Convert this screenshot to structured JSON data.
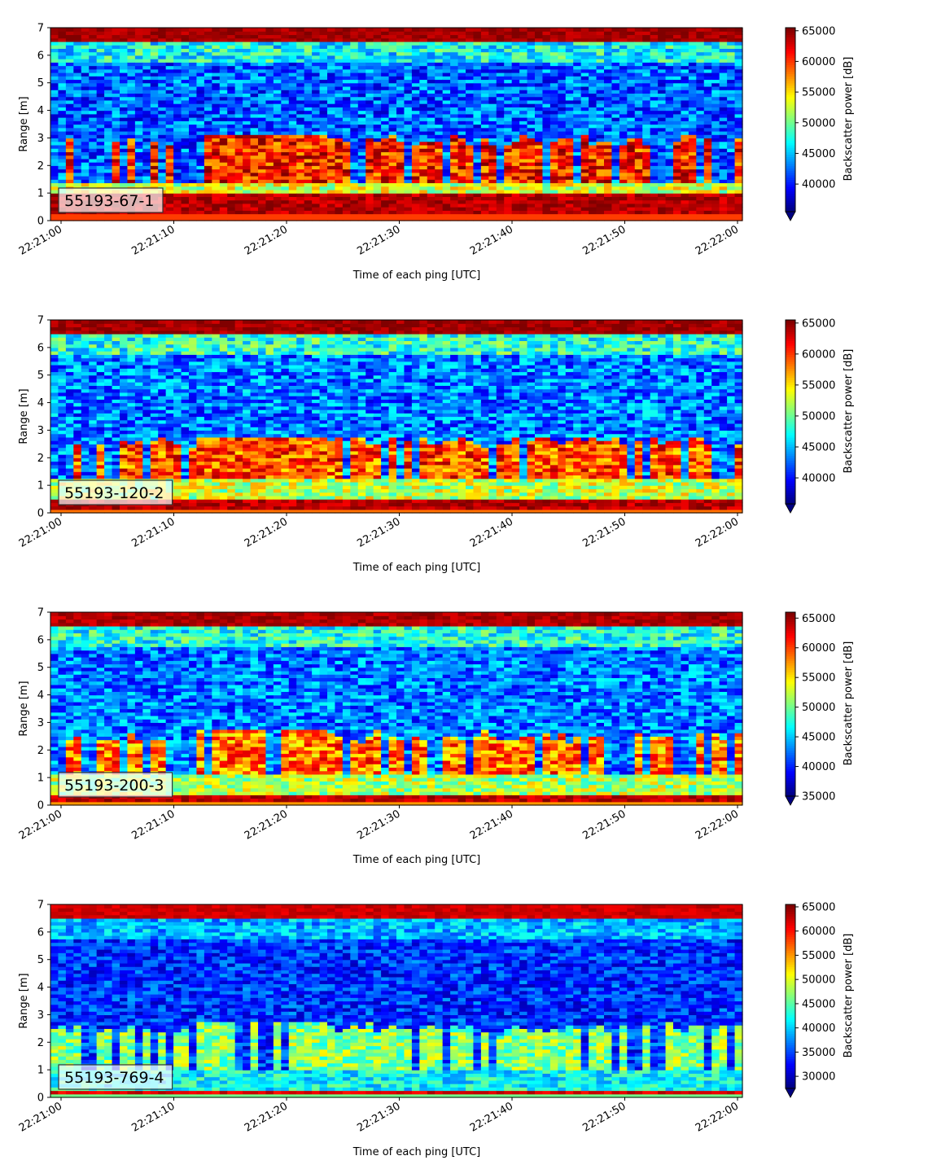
{
  "chart_data": [
    {
      "type": "heatmap",
      "panel_label": "55193-67-1",
      "xlabel": "Time of each ping [UTC]",
      "ylabel": "Range [m]",
      "xlim": [
        "22:21:00",
        "22:22:00"
      ],
      "x_ticks": [
        "22:21:00",
        "22:21:10",
        "22:21:20",
        "22:21:30",
        "22:21:40",
        "22:21:50",
        "22:22:00"
      ],
      "ylim": [
        0,
        7
      ],
      "y_ticks": [
        "0",
        "1",
        "2",
        "3",
        "4",
        "5",
        "6",
        "7"
      ],
      "colorbar": {
        "label": "Backscatter power [dB]",
        "colormap": "jet",
        "range": [
          35500,
          65500
        ],
        "ticks": [
          "40000",
          "45000",
          "50000",
          "55000",
          "60000",
          "65000"
        ],
        "extend": "min"
      },
      "features": {
        "bottom_band_m": [
          0.2,
          1.0
        ],
        "surface_band_m": [
          6.55,
          7.0
        ],
        "scatter_layer_m": [
          1.4,
          3.1
        ],
        "background_level": 42000,
        "bottom_level": 66000,
        "layer_level": 60000
      }
    },
    {
      "type": "heatmap",
      "panel_label": "55193-120-2",
      "xlabel": "Time of each ping [UTC]",
      "ylabel": "Range [m]",
      "xlim": [
        "22:21:00",
        "22:22:00"
      ],
      "x_ticks": [
        "22:21:00",
        "22:21:10",
        "22:21:20",
        "22:21:30",
        "22:21:40",
        "22:21:50",
        "22:22:00"
      ],
      "ylim": [
        0,
        7
      ],
      "y_ticks": [
        "0",
        "1",
        "2",
        "3",
        "4",
        "5",
        "6",
        "7"
      ],
      "colorbar": {
        "label": "Backscatter power [dB]",
        "colormap": "jet",
        "range": [
          35800,
          65500
        ],
        "ticks": [
          "40000",
          "45000",
          "50000",
          "55000",
          "60000",
          "65000"
        ],
        "extend": "min"
      },
      "features": {
        "bottom_band_m": [
          0.1,
          0.5
        ],
        "surface_band_m": [
          6.5,
          7.0
        ],
        "scatter_layer_m": [
          1.2,
          2.8
        ],
        "background_level": 43000,
        "bottom_level": 66000,
        "layer_level": 58500
      }
    },
    {
      "type": "heatmap",
      "panel_label": "55193-200-3",
      "xlabel": "Time of each ping [UTC]",
      "ylabel": "Range [m]",
      "xlim": [
        "22:21:00",
        "22:22:00"
      ],
      "x_ticks": [
        "22:21:00",
        "22:21:10",
        "22:21:20",
        "22:21:30",
        "22:21:40",
        "22:21:50",
        "22:22:00"
      ],
      "ylim": [
        0,
        7
      ],
      "y_ticks": [
        "0",
        "1",
        "2",
        "3",
        "4",
        "5",
        "6",
        "7"
      ],
      "colorbar": {
        "label": "Backscatter power [dB]",
        "colormap": "jet",
        "range": [
          35000,
          66000
        ],
        "ticks": [
          "35000",
          "40000",
          "45000",
          "50000",
          "55000",
          "60000",
          "65000"
        ],
        "extend": "min"
      },
      "features": {
        "bottom_band_m": [
          0.1,
          0.4
        ],
        "surface_band_m": [
          6.5,
          7.0
        ],
        "scatter_layer_m": [
          1.1,
          2.7
        ],
        "background_level": 42500,
        "bottom_level": 66000,
        "layer_level": 57500
      }
    },
    {
      "type": "heatmap",
      "panel_label": "55193-769-4",
      "xlabel": "Time of each ping [UTC]",
      "ylabel": "Range [m]",
      "xlim": [
        "22:21:00",
        "22:22:00"
      ],
      "x_ticks": [
        "22:21:00",
        "22:21:10",
        "22:21:20",
        "22:21:30",
        "22:21:40",
        "22:21:50",
        "22:22:00"
      ],
      "ylim": [
        0,
        7
      ],
      "y_ticks": [
        "0",
        "1",
        "2",
        "3",
        "4",
        "5",
        "6",
        "7"
      ],
      "colorbar": {
        "label": "Backscatter power [dB]",
        "colormap": "jet",
        "range": [
          27500,
          65500
        ],
        "ticks": [
          "30000",
          "35000",
          "40000",
          "45000",
          "50000",
          "55000",
          "60000",
          "65000"
        ],
        "extend": "min"
      },
      "features": {
        "bottom_band_m": [
          0.15,
          0.3
        ],
        "surface_band_m": [
          6.45,
          6.8
        ],
        "scatter_layer_m": [
          1.0,
          2.7
        ],
        "background_level": 34000,
        "bottom_level": 64000,
        "layer_level": 46000
      }
    }
  ]
}
